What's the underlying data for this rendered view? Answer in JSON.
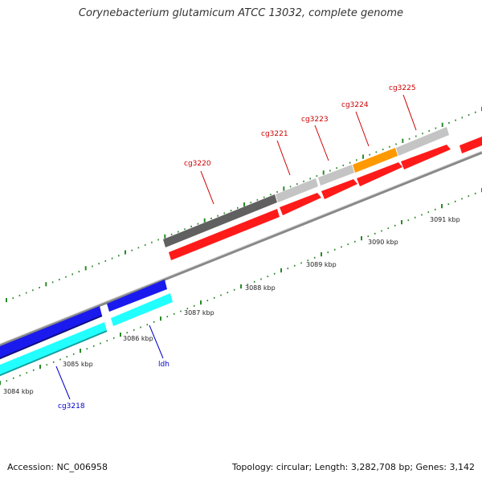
{
  "title": "Corynebacterium glutamicum ATCC 13032, complete genome",
  "footer": {
    "accession": "Accession: NC_006958",
    "info": "Topology: circular; Length: 3,282,708 bp; Genes: 3,142"
  },
  "colors": {
    "forward": "#ff1a1a",
    "reverse_blue": "#1a1aee",
    "reverse_cyan": "#22ffff",
    "dark_gray": "#606060",
    "light_gray": "#c4c4c4",
    "orange": "#ff9900",
    "backbone": "#888888",
    "tick": "#2a8a2a",
    "label_red": "#cc0000",
    "label_blue": "#0000cc"
  },
  "ticks": [
    {
      "label": "3084 kbp"
    },
    {
      "label": "3085 kbp"
    },
    {
      "label": "3086 kbp"
    },
    {
      "label": "3087 kbp"
    },
    {
      "label": "3088 kbp"
    },
    {
      "label": "3089 kbp"
    },
    {
      "label": "3090 kbp"
    },
    {
      "label": "3091 kbp"
    }
  ],
  "gene_labels": [
    {
      "name": "cg3220",
      "color": "label_red"
    },
    {
      "name": "cg3221",
      "color": "label_red"
    },
    {
      "name": "cg3223",
      "color": "label_red"
    },
    {
      "name": "cg3224",
      "color": "label_red"
    },
    {
      "name": "cg3225",
      "color": "label_red"
    },
    {
      "name": "ldh",
      "color": "label_blue"
    },
    {
      "name": "cg3218",
      "color": "label_blue"
    }
  ]
}
